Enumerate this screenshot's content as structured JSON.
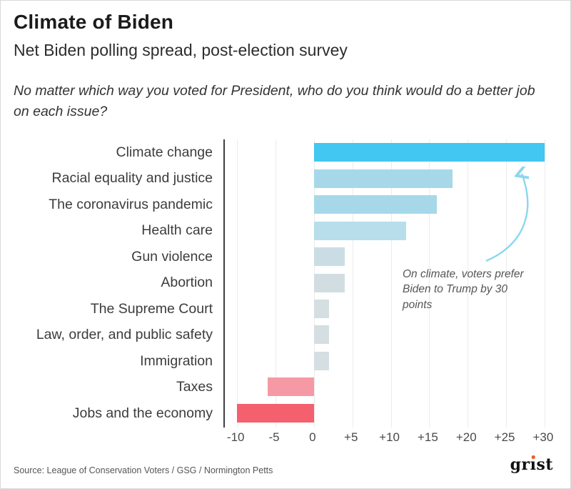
{
  "header": {
    "title": "Climate of Biden",
    "subtitle": "Net Biden polling spread, post-election survey",
    "question": "No matter which way you voted for President, who do you think would do a better job on each issue?"
  },
  "chart_data": {
    "type": "bar",
    "orientation": "horizontal",
    "title": "Climate of Biden",
    "subtitle": "Net Biden polling spread, post-election survey",
    "categories": [
      "Climate change",
      "Racial equality and justice",
      "The coronavirus pandemic",
      "Health care",
      "Gun violence",
      "Abortion",
      "The Supreme Court",
      "Law, order, and public safety",
      "Immigration",
      "Taxes",
      "Jobs and the economy"
    ],
    "values": [
      30,
      18,
      16,
      12,
      4,
      4,
      2,
      2,
      2,
      -6,
      -10
    ],
    "bar_colors": [
      "#41c7f2",
      "#a6d8ea",
      "#a6d8ea",
      "#b7deea",
      "#cbdde4",
      "#d2dde2",
      "#d5dee1",
      "#d5dee1",
      "#d5dee1",
      "#f59aa4",
      "#f4606e"
    ],
    "x_ticks": [
      -10,
      -5,
      0,
      5,
      10,
      15,
      20,
      25,
      30
    ],
    "x_tick_labels": [
      "-10",
      "-5",
      "0",
      "+5",
      "+10",
      "+15",
      "+20",
      "+25",
      "+30"
    ],
    "xlim": [
      -11.6,
      31.4
    ],
    "grid": true,
    "legend": "none",
    "annotation": "On climate, voters prefer Biden to Trump by 30 points"
  },
  "footer": {
    "source": "Source: League of Conservation Voters / GSG / Normington Petts",
    "logo_text": "grist"
  },
  "colors": {
    "accent_arrow": "#8bd7ee",
    "axis_line": "#3f3f3f",
    "grid_line": "#ececec",
    "logo_dot": "#f05b24",
    "climate_bar": "#41c7f2",
    "negative_bar": "#f4606e"
  }
}
